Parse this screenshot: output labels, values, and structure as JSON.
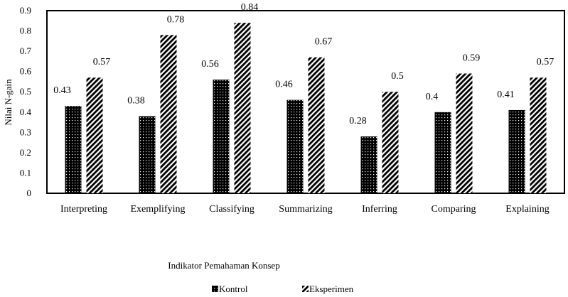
{
  "chart_data": {
    "type": "bar",
    "categories": [
      "Interpreting",
      "Exemplifying",
      "Classifying",
      "Summarizing",
      "Inferring",
      "Comparing",
      "Explaining"
    ],
    "series": [
      {
        "name": "Kontrol",
        "values": [
          0.43,
          0.38,
          0.56,
          0.46,
          0.28,
          0.4,
          0.41
        ],
        "labels": [
          "0.43",
          "0.38",
          "0.56",
          "0.46",
          "0.28",
          "0.4",
          "0.41"
        ]
      },
      {
        "name": "Eksperimen",
        "values": [
          0.57,
          0.78,
          0.84,
          0.67,
          0.5,
          0.59,
          0.57
        ],
        "labels": [
          "0.57",
          "0.78",
          "0.84",
          "0.67",
          "0.5",
          "0.59",
          "0.57"
        ]
      }
    ],
    "yticks": [
      "0",
      "0.1",
      "0.2",
      "0.3",
      "0.4",
      "0.5",
      "0.6",
      "0.7",
      "0.8",
      "0.9"
    ],
    "ylim": [
      0,
      0.9
    ],
    "ylabel": "Nilai N-gain",
    "xlabel": "Indikator Pemahaman Konsep",
    "legend_position": "bottom",
    "grid": false,
    "colors": {
      "axis": "#000000",
      "bar": "#000000",
      "background": "#ffffff"
    }
  }
}
